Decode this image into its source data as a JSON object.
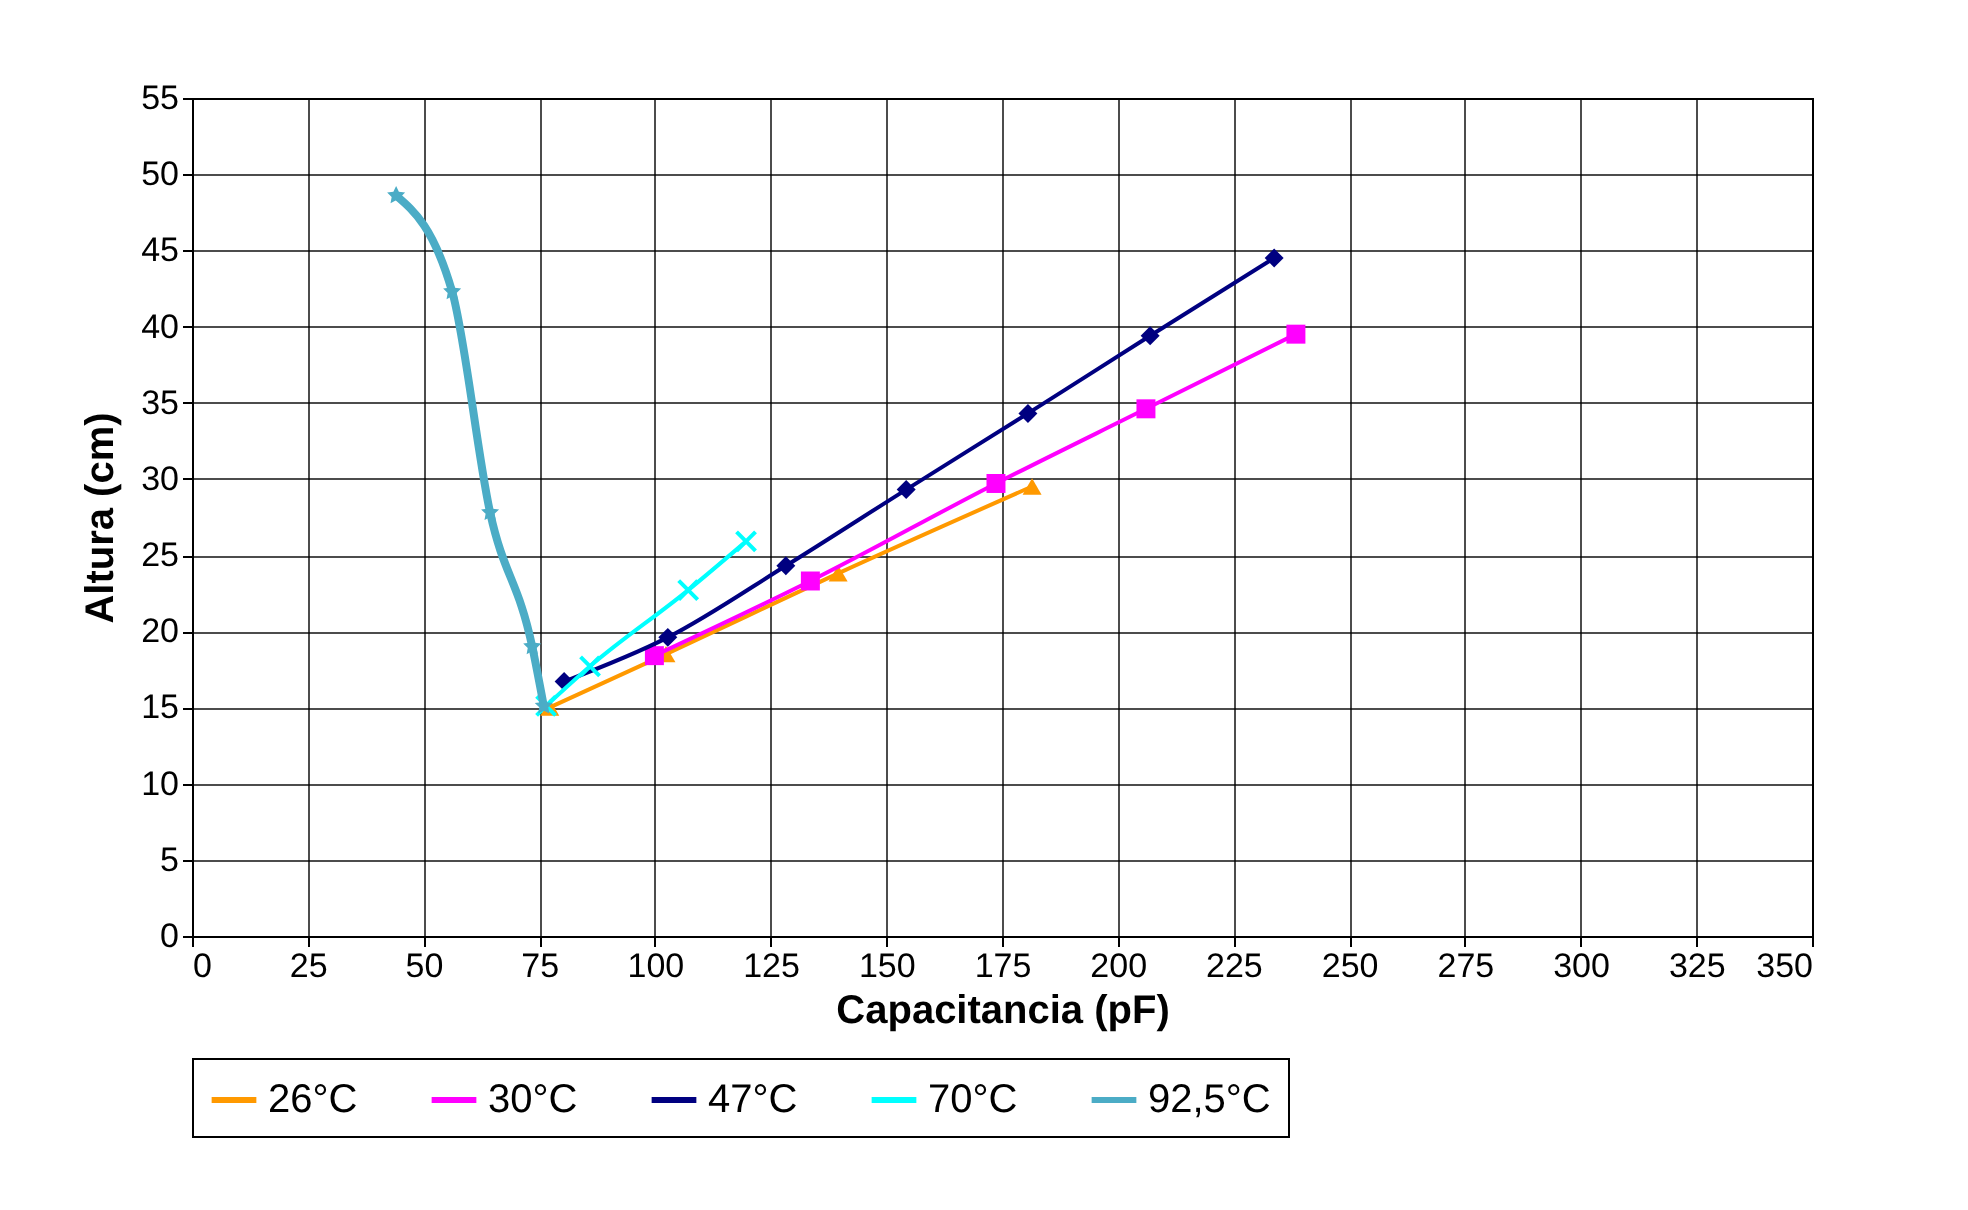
{
  "chart_data": {
    "type": "line",
    "xlabel": "Capacitancia (pF)",
    "ylabel": "Altura (cm)",
    "xlim": [
      0,
      350
    ],
    "xticks": [
      0,
      25,
      50,
      75,
      100,
      125,
      150,
      175,
      200,
      225,
      250,
      275,
      300,
      325,
      350
    ],
    "ylim": [
      0,
      55
    ],
    "yticks": [
      0,
      5,
      10,
      15,
      20,
      25,
      30,
      35,
      40,
      45,
      50,
      55
    ],
    "grid": true,
    "legend": "bottom",
    "series": [
      {
        "name": "26°C",
        "color": "#ff9900",
        "marker": "triangle",
        "x": [
          77.3,
          102.4,
          139.6,
          181.5
        ],
        "values": [
          15.0,
          18.5,
          23.8,
          29.5
        ]
      },
      {
        "name": "30°C",
        "color": "#ff00ff",
        "marker": "square",
        "x": [
          99.9,
          133.6,
          173.7,
          206.1,
          238.5
        ],
        "values": [
          18.4,
          23.3,
          29.7,
          34.6,
          39.5
        ]
      },
      {
        "name": "47°C",
        "color": "#000080",
        "marker": "diamond",
        "x": [
          80.4,
          102.8,
          128.3,
          154.3,
          180.6,
          207.0,
          233.8
        ],
        "values": [
          16.7,
          19.6,
          24.3,
          29.3,
          34.3,
          39.4,
          44.5
        ]
      },
      {
        "name": "70°C",
        "color": "#00ffff",
        "marker": "cross",
        "x": [
          76.5,
          86.0,
          107.2,
          119.7
        ],
        "values": [
          15.1,
          17.7,
          22.7,
          25.9
        ]
      },
      {
        "name": "92,5°C",
        "color": "#4bacc6",
        "marker": "star",
        "x": [
          44.1,
          56.2,
          64.4,
          73.5,
          76.0
        ],
        "values": [
          48.6,
          42.3,
          27.8,
          19.0,
          15.1
        ]
      }
    ]
  }
}
